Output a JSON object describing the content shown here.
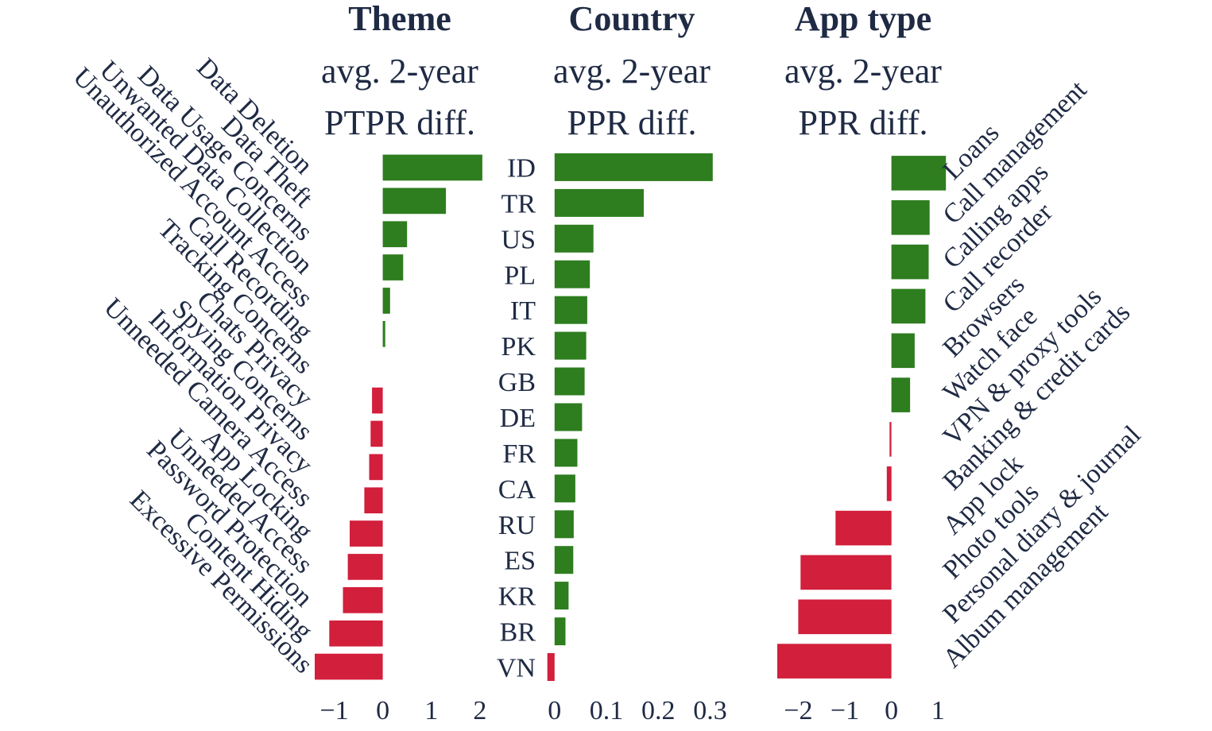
{
  "colors": {
    "positive": "#2e7d1f",
    "negative": "#d21f3c",
    "text": "#1f2a44"
  },
  "chart_data": [
    {
      "type": "bar",
      "orientation": "horizontal",
      "title": "Theme",
      "subtitle_lines": [
        "avg. 2-year",
        "PTPR diff."
      ],
      "categories": [
        "Data Deletion",
        "Data Theft",
        "Data Usage Concerns",
        "Unwanted Data Collection",
        "Unauthorized Account Access",
        "Call Recording",
        "Tracking Concerns",
        "Chats Privacy",
        "Spying Concerns",
        "Information Privacy",
        "Unneeded Camera Access",
        "App Locking",
        "Unneeded Access",
        "Password Protection",
        "Content Hiding",
        "Excessive Permissions"
      ],
      "values": [
        2.05,
        1.3,
        0.5,
        0.42,
        0.15,
        0.05,
        0.0,
        -0.22,
        -0.25,
        -0.28,
        -0.38,
        -0.68,
        -0.72,
        -0.82,
        -1.1,
        -1.4
      ],
      "xlim": [
        -1.4,
        2.1
      ],
      "xticks": [
        "−1",
        "0",
        "1",
        "2"
      ],
      "xtick_values": [
        -1,
        0,
        1,
        2
      ]
    },
    {
      "type": "bar",
      "orientation": "horizontal",
      "title": "Country",
      "subtitle_lines": [
        "avg. 2-year",
        "PPR diff."
      ],
      "categories": [
        "ID",
        "TR",
        "US",
        "PL",
        "IT",
        "PK",
        "GB",
        "DE",
        "FR",
        "CA",
        "RU",
        "ES",
        "KR",
        "BR",
        "VN"
      ],
      "values": [
        0.305,
        0.172,
        0.075,
        0.068,
        0.063,
        0.061,
        0.058,
        0.053,
        0.044,
        0.04,
        0.037,
        0.036,
        0.027,
        0.021,
        -0.014
      ],
      "xlim": [
        -0.015,
        0.31
      ],
      "xticks": [
        "0",
        "0.1",
        "0.2",
        "0.3"
      ],
      "xtick_values": [
        0,
        0.1,
        0.2,
        0.3
      ]
    },
    {
      "type": "bar",
      "orientation": "horizontal",
      "title": "App type",
      "subtitle_lines": [
        "avg. 2-year",
        "PPR diff."
      ],
      "categories": [
        "Loans",
        "Call management",
        "Calling apps",
        "Call recorder",
        "Browsers",
        "Watch face",
        "VPN & proxy tools",
        "Banking & credit cards",
        "App lock",
        "Photo tools",
        "Personal diary & journal",
        "Album management"
      ],
      "values": [
        1.17,
        0.82,
        0.8,
        0.73,
        0.5,
        0.4,
        -0.04,
        -0.1,
        -1.2,
        -1.95,
        -2.0,
        -2.45
      ],
      "xlim": [
        -2.45,
        1.2
      ],
      "xticks": [
        "−2",
        "−1",
        "0",
        "1"
      ],
      "xtick_values": [
        -2,
        -1,
        0,
        1
      ]
    }
  ]
}
